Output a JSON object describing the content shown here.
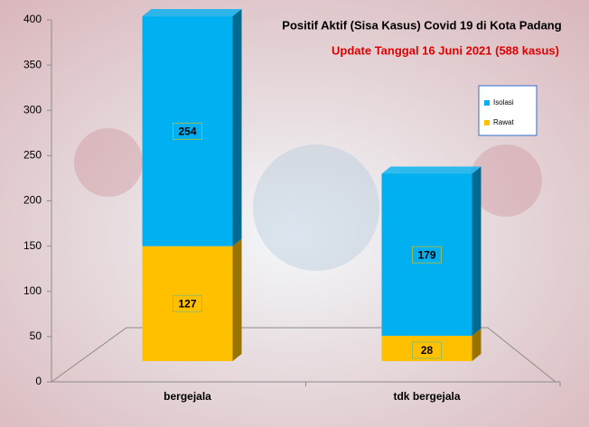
{
  "chart_data": {
    "type": "stacked-bar-3d",
    "title": "Positif Aktif  (Sisa Kasus) Covid 19 di Kota Padang",
    "subtitle": "Update Tanggal 16 Juni 2021  (588 kasus)",
    "categories": [
      "bergejala",
      "tdk bergejala"
    ],
    "series": [
      {
        "name": "Rawat",
        "color": "#ffc000",
        "values": [
          127,
          28
        ]
      },
      {
        "name": "Isolasi",
        "color": "#00b0f0",
        "values": [
          254,
          179
        ]
      }
    ],
    "legend_order": [
      "Isolasi",
      "Rawat"
    ],
    "ylim": [
      0,
      400
    ],
    "yticks": [
      0,
      50,
      100,
      150,
      200,
      250,
      300,
      350,
      400
    ],
    "grid": false
  }
}
